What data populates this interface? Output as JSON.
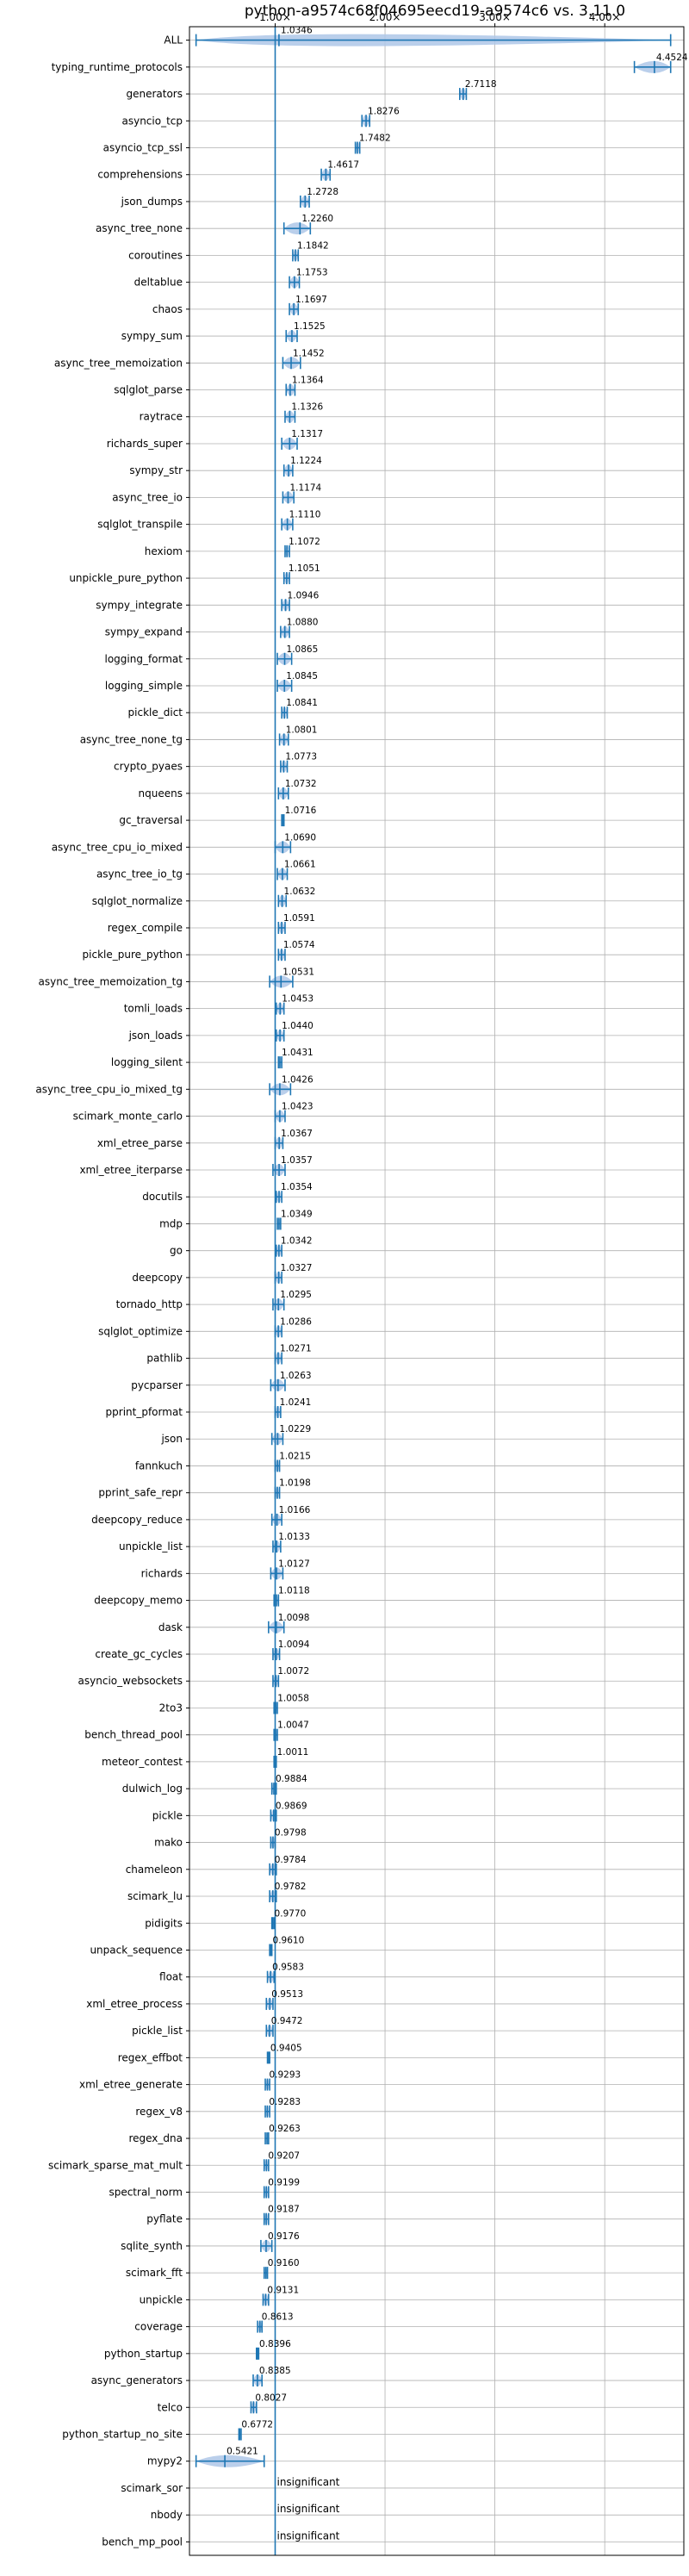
{
  "chart_data": {
    "type": "violin",
    "title": "python-a9574c68f04695eecd19-a9574c6 vs. 3.11.0",
    "xlabel": "",
    "ylabel": "",
    "x_ticks": [
      "1.00×",
      "2.00×",
      "3.00×",
      "4.00×"
    ],
    "x_tick_values": [
      1,
      2,
      3,
      4
    ],
    "xlim": [
      0.22,
      4.72
    ],
    "reference_line": 1.0,
    "grid": true,
    "accent_color": "#1f77b4",
    "violin_color": "#aec7e8",
    "rows": [
      {
        "name": "ALL",
        "value": 1.0346,
        "label": "1.0346",
        "lo": 0.28,
        "hi": 4.6
      },
      {
        "name": "typing_runtime_protocols",
        "value": 4.4524,
        "label": "4.4524",
        "lo": 4.27,
        "hi": 4.6
      },
      {
        "name": "generators",
        "value": 2.7118,
        "label": "2.7118",
        "lo": 2.68,
        "hi": 2.74
      },
      {
        "name": "asyncio_tcp",
        "value": 1.8276,
        "label": "1.8276",
        "lo": 1.79,
        "hi": 1.86
      },
      {
        "name": "asyncio_tcp_ssl",
        "value": 1.7482,
        "label": "1.7482",
        "lo": 1.73,
        "hi": 1.77
      },
      {
        "name": "comprehensions",
        "value": 1.4617,
        "label": "1.4617",
        "lo": 1.42,
        "hi": 1.5
      },
      {
        "name": "json_dumps",
        "value": 1.2728,
        "label": "1.2728",
        "lo": 1.23,
        "hi": 1.31
      },
      {
        "name": "async_tree_none",
        "value": 1.226,
        "label": "1.2260",
        "lo": 1.08,
        "hi": 1.32
      },
      {
        "name": "coroutines",
        "value": 1.1842,
        "label": "1.1842",
        "lo": 1.16,
        "hi": 1.21
      },
      {
        "name": "deltablue",
        "value": 1.1753,
        "label": "1.1753",
        "lo": 1.13,
        "hi": 1.22
      },
      {
        "name": "chaos",
        "value": 1.1697,
        "label": "1.1697",
        "lo": 1.13,
        "hi": 1.21
      },
      {
        "name": "sympy_sum",
        "value": 1.1525,
        "label": "1.1525",
        "lo": 1.1,
        "hi": 1.2
      },
      {
        "name": "async_tree_memoization",
        "value": 1.1452,
        "label": "1.1452",
        "lo": 1.07,
        "hi": 1.23
      },
      {
        "name": "sqlglot_parse",
        "value": 1.1364,
        "label": "1.1364",
        "lo": 1.1,
        "hi": 1.18
      },
      {
        "name": "raytrace",
        "value": 1.1326,
        "label": "1.1326",
        "lo": 1.09,
        "hi": 1.18
      },
      {
        "name": "richards_super",
        "value": 1.1317,
        "label": "1.1317",
        "lo": 1.06,
        "hi": 1.2
      },
      {
        "name": "sympy_str",
        "value": 1.1224,
        "label": "1.1224",
        "lo": 1.08,
        "hi": 1.16
      },
      {
        "name": "async_tree_io",
        "value": 1.1174,
        "label": "1.1174",
        "lo": 1.07,
        "hi": 1.17
      },
      {
        "name": "sqlglot_transpile",
        "value": 1.111,
        "label": "1.1110",
        "lo": 1.06,
        "hi": 1.16
      },
      {
        "name": "hexiom",
        "value": 1.1072,
        "label": "1.1072",
        "lo": 1.09,
        "hi": 1.13
      },
      {
        "name": "unpickle_pure_python",
        "value": 1.1051,
        "label": "1.1051",
        "lo": 1.08,
        "hi": 1.13
      },
      {
        "name": "sympy_integrate",
        "value": 1.0946,
        "label": "1.0946",
        "lo": 1.06,
        "hi": 1.13
      },
      {
        "name": "sympy_expand",
        "value": 1.088,
        "label": "1.0880",
        "lo": 1.05,
        "hi": 1.13
      },
      {
        "name": "logging_format",
        "value": 1.0865,
        "label": "1.0865",
        "lo": 1.02,
        "hi": 1.15
      },
      {
        "name": "logging_simple",
        "value": 1.0845,
        "label": "1.0845",
        "lo": 1.02,
        "hi": 1.15
      },
      {
        "name": "pickle_dict",
        "value": 1.0841,
        "label": "1.0841",
        "lo": 1.06,
        "hi": 1.11
      },
      {
        "name": "async_tree_none_tg",
        "value": 1.0801,
        "label": "1.0801",
        "lo": 1.04,
        "hi": 1.12
      },
      {
        "name": "crypto_pyaes",
        "value": 1.0773,
        "label": "1.0773",
        "lo": 1.05,
        "hi": 1.11
      },
      {
        "name": "nqueens",
        "value": 1.0732,
        "label": "1.0732",
        "lo": 1.03,
        "hi": 1.12
      },
      {
        "name": "gc_traversal",
        "value": 1.0716,
        "label": "1.0716",
        "lo": 1.06,
        "hi": 1.08
      },
      {
        "name": "async_tree_cpu_io_mixed",
        "value": 1.069,
        "label": "1.0690",
        "lo": 1.0,
        "hi": 1.14
      },
      {
        "name": "async_tree_io_tg",
        "value": 1.0661,
        "label": "1.0661",
        "lo": 1.02,
        "hi": 1.11
      },
      {
        "name": "sqlglot_normalize",
        "value": 1.0632,
        "label": "1.0632",
        "lo": 1.03,
        "hi": 1.1
      },
      {
        "name": "regex_compile",
        "value": 1.0591,
        "label": "1.0591",
        "lo": 1.03,
        "hi": 1.09
      },
      {
        "name": "pickle_pure_python",
        "value": 1.0574,
        "label": "1.0574",
        "lo": 1.03,
        "hi": 1.09
      },
      {
        "name": "async_tree_memoization_tg",
        "value": 1.0531,
        "label": "1.0531",
        "lo": 0.95,
        "hi": 1.16
      },
      {
        "name": "tomli_loads",
        "value": 1.0453,
        "label": "1.0453",
        "lo": 1.01,
        "hi": 1.08
      },
      {
        "name": "json_loads",
        "value": 1.044,
        "label": "1.0440",
        "lo": 1.01,
        "hi": 1.08
      },
      {
        "name": "logging_silent",
        "value": 1.0431,
        "label": "1.0431",
        "lo": 1.03,
        "hi": 1.06
      },
      {
        "name": "async_tree_cpu_io_mixed_tg",
        "value": 1.0426,
        "label": "1.0426",
        "lo": 0.95,
        "hi": 1.14
      },
      {
        "name": "scimark_monte_carlo",
        "value": 1.0423,
        "label": "1.0423",
        "lo": 1.0,
        "hi": 1.09
      },
      {
        "name": "xml_etree_parse",
        "value": 1.0367,
        "label": "1.0367",
        "lo": 1.0,
        "hi": 1.07
      },
      {
        "name": "xml_etree_iterparse",
        "value": 1.0357,
        "label": "1.0357",
        "lo": 0.98,
        "hi": 1.09
      },
      {
        "name": "docutils",
        "value": 1.0354,
        "label": "1.0354",
        "lo": 1.01,
        "hi": 1.06
      },
      {
        "name": "mdp",
        "value": 1.0349,
        "label": "1.0349",
        "lo": 1.02,
        "hi": 1.05
      },
      {
        "name": "go",
        "value": 1.0342,
        "label": "1.0342",
        "lo": 1.01,
        "hi": 1.06
      },
      {
        "name": "deepcopy",
        "value": 1.0327,
        "label": "1.0327",
        "lo": 1.0,
        "hi": 1.06
      },
      {
        "name": "tornado_http",
        "value": 1.0295,
        "label": "1.0295",
        "lo": 0.98,
        "hi": 1.08
      },
      {
        "name": "sqlglot_optimize",
        "value": 1.0286,
        "label": "1.0286",
        "lo": 1.0,
        "hi": 1.06
      },
      {
        "name": "pathlib",
        "value": 1.0271,
        "label": "1.0271",
        "lo": 1.0,
        "hi": 1.06
      },
      {
        "name": "pycparser",
        "value": 1.0263,
        "label": "1.0263",
        "lo": 0.96,
        "hi": 1.09
      },
      {
        "name": "pprint_pformat",
        "value": 1.0241,
        "label": "1.0241",
        "lo": 1.0,
        "hi": 1.05
      },
      {
        "name": "json",
        "value": 1.0229,
        "label": "1.0229",
        "lo": 0.97,
        "hi": 1.07
      },
      {
        "name": "fannkuch",
        "value": 1.0215,
        "label": "1.0215",
        "lo": 1.0,
        "hi": 1.04
      },
      {
        "name": "pprint_safe_repr",
        "value": 1.0198,
        "label": "1.0198",
        "lo": 1.0,
        "hi": 1.04
      },
      {
        "name": "deepcopy_reduce",
        "value": 1.0166,
        "label": "1.0166",
        "lo": 0.97,
        "hi": 1.06
      },
      {
        "name": "unpickle_list",
        "value": 1.0133,
        "label": "1.0133",
        "lo": 0.98,
        "hi": 1.05
      },
      {
        "name": "richards",
        "value": 1.0127,
        "label": "1.0127",
        "lo": 0.96,
        "hi": 1.07
      },
      {
        "name": "deepcopy_memo",
        "value": 1.0118,
        "label": "1.0118",
        "lo": 0.99,
        "hi": 1.03
      },
      {
        "name": "dask",
        "value": 1.0098,
        "label": "1.0098",
        "lo": 0.94,
        "hi": 1.08
      },
      {
        "name": "create_gc_cycles",
        "value": 1.0094,
        "label": "1.0094",
        "lo": 0.98,
        "hi": 1.04
      },
      {
        "name": "asyncio_websockets",
        "value": 1.0072,
        "label": "1.0072",
        "lo": 0.98,
        "hi": 1.03
      },
      {
        "name": "2to3",
        "value": 1.0058,
        "label": "1.0058",
        "lo": 0.99,
        "hi": 1.02
      },
      {
        "name": "bench_thread_pool",
        "value": 1.0047,
        "label": "1.0047",
        "lo": 0.99,
        "hi": 1.02
      },
      {
        "name": "meteor_contest",
        "value": 1.0011,
        "label": "1.0011",
        "lo": 0.99,
        "hi": 1.01
      },
      {
        "name": "dulwich_log",
        "value": 0.9884,
        "label": "0.9884",
        "lo": 0.97,
        "hi": 1.01
      },
      {
        "name": "pickle",
        "value": 0.9869,
        "label": "0.9869",
        "lo": 0.96,
        "hi": 1.01
      },
      {
        "name": "mako",
        "value": 0.9798,
        "label": "0.9798",
        "lo": 0.96,
        "hi": 1.0
      },
      {
        "name": "chameleon",
        "value": 0.9784,
        "label": "0.9784",
        "lo": 0.95,
        "hi": 1.01
      },
      {
        "name": "scimark_lu",
        "value": 0.9782,
        "label": "0.9782",
        "lo": 0.95,
        "hi": 1.01
      },
      {
        "name": "pidigits",
        "value": 0.977,
        "label": "0.9770",
        "lo": 0.97,
        "hi": 0.99
      },
      {
        "name": "unpack_sequence",
        "value": 0.961,
        "label": "0.9610",
        "lo": 0.95,
        "hi": 0.97
      },
      {
        "name": "float",
        "value": 0.9583,
        "label": "0.9583",
        "lo": 0.93,
        "hi": 0.99
      },
      {
        "name": "xml_etree_process",
        "value": 0.9513,
        "label": "0.9513",
        "lo": 0.92,
        "hi": 0.98
      },
      {
        "name": "pickle_list",
        "value": 0.9472,
        "label": "0.9472",
        "lo": 0.92,
        "hi": 0.98
      },
      {
        "name": "regex_effbot",
        "value": 0.9405,
        "label": "0.9405",
        "lo": 0.93,
        "hi": 0.95
      },
      {
        "name": "xml_etree_generate",
        "value": 0.9293,
        "label": "0.9293",
        "lo": 0.91,
        "hi": 0.95
      },
      {
        "name": "regex_v8",
        "value": 0.9283,
        "label": "0.9283",
        "lo": 0.91,
        "hi": 0.95
      },
      {
        "name": "regex_dna",
        "value": 0.9263,
        "label": "0.9263",
        "lo": 0.91,
        "hi": 0.94
      },
      {
        "name": "scimark_sparse_mat_mult",
        "value": 0.9207,
        "label": "0.9207",
        "lo": 0.9,
        "hi": 0.94
      },
      {
        "name": "spectral_norm",
        "value": 0.9199,
        "label": "0.9199",
        "lo": 0.9,
        "hi": 0.94
      },
      {
        "name": "pyflate",
        "value": 0.9187,
        "label": "0.9187",
        "lo": 0.9,
        "hi": 0.94
      },
      {
        "name": "sqlite_synth",
        "value": 0.9176,
        "label": "0.9176",
        "lo": 0.87,
        "hi": 0.97
      },
      {
        "name": "scimark_fft",
        "value": 0.916,
        "label": "0.9160",
        "lo": 0.9,
        "hi": 0.93
      },
      {
        "name": "unpickle",
        "value": 0.9131,
        "label": "0.9131",
        "lo": 0.89,
        "hi": 0.94
      },
      {
        "name": "coverage",
        "value": 0.8613,
        "label": "0.8613",
        "lo": 0.84,
        "hi": 0.88
      },
      {
        "name": "python_startup",
        "value": 0.8396,
        "label": "0.8396",
        "lo": 0.83,
        "hi": 0.85
      },
      {
        "name": "async_generators",
        "value": 0.8385,
        "label": "0.8385",
        "lo": 0.8,
        "hi": 0.88
      },
      {
        "name": "telco",
        "value": 0.8027,
        "label": "0.8027",
        "lo": 0.78,
        "hi": 0.83
      },
      {
        "name": "python_startup_no_site",
        "value": 0.6772,
        "label": "0.6772",
        "lo": 0.67,
        "hi": 0.69
      },
      {
        "name": "mypy2",
        "value": 0.5421,
        "label": "0.5421",
        "lo": 0.28,
        "hi": 0.9
      },
      {
        "name": "scimark_sor",
        "value": null,
        "label": "insignificant"
      },
      {
        "name": "nbody",
        "value": null,
        "label": "insignificant"
      },
      {
        "name": "bench_mp_pool",
        "value": null,
        "label": "insignificant"
      }
    ]
  }
}
